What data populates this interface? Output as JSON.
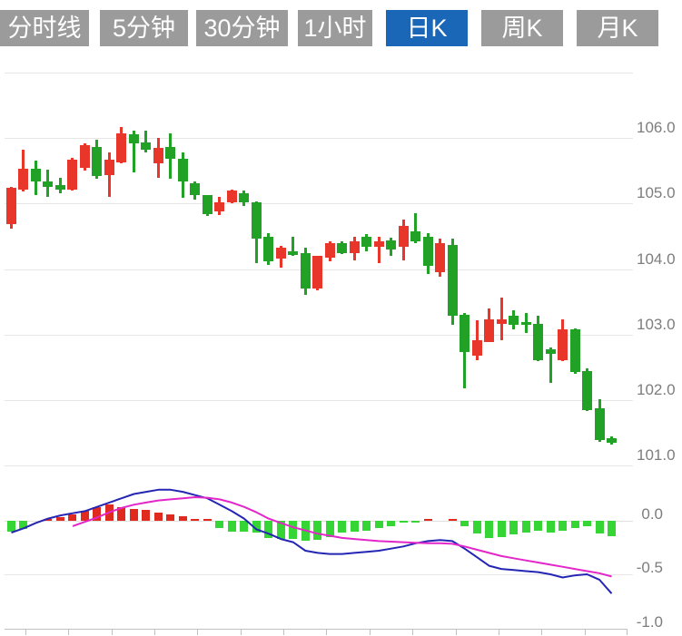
{
  "toolbar": {
    "buttons": [
      {
        "label": "分时线",
        "active": false
      },
      {
        "label": "5分钟",
        "active": false
      },
      {
        "label": "30分钟",
        "active": false
      },
      {
        "label": "1小时",
        "active": false
      },
      {
        "label": "日K",
        "active": true
      },
      {
        "label": "周K",
        "active": false
      },
      {
        "label": "月K",
        "active": false
      }
    ]
  },
  "colors": {
    "button_bg": "#9b9b9b",
    "button_active_bg": "#1a67b8",
    "button_text": "#ffffff",
    "candle_red": "#e8362b",
    "candle_green": "#21a126",
    "hist_red": "#e02a1f",
    "hist_green": "#35d535",
    "dif_line": "#2525b4",
    "dea_line": "#e326c9",
    "grid": "#e8e6e4",
    "axis": "#c2c0be",
    "label": "#7d7d7d"
  },
  "chart_data": {
    "type": "candlestick-with-macd",
    "title": "",
    "selected_interval": "日K",
    "price_axis": {
      "range": [
        100.8,
        107.1
      ],
      "ticks": [
        {
          "value": 107.0,
          "label": ""
        },
        {
          "value": 106.0,
          "label": "106.0"
        },
        {
          "value": 105.0,
          "label": "105.0"
        },
        {
          "value": 104.0,
          "label": "104.0"
        },
        {
          "value": 103.0,
          "label": "103.0"
        },
        {
          "value": 102.0,
          "label": "102.0"
        },
        {
          "value": 101.0,
          "label": "101.0"
        }
      ]
    },
    "macd_axis": {
      "range": [
        -1.05,
        0.45
      ],
      "ticks": [
        {
          "value": 0.0,
          "label": "0.0",
          "axis": false
        },
        {
          "value": -0.5,
          "label": "-0.5",
          "axis": false
        },
        {
          "value": -1.0,
          "label": "-1.0",
          "axis": true
        }
      ]
    },
    "candle_columns": [
      "high",
      "body_top",
      "body_bottom",
      "low",
      "color(r=red,g=green)"
    ],
    "candles": [
      [
        105.26,
        105.24,
        104.69,
        104.62,
        "r"
      ],
      [
        105.82,
        105.53,
        105.21,
        105.19,
        "r"
      ],
      [
        105.65,
        105.53,
        105.34,
        105.13,
        "g"
      ],
      [
        105.52,
        105.34,
        105.25,
        105.1,
        "g"
      ],
      [
        105.4,
        105.28,
        105.22,
        105.16,
        "g"
      ],
      [
        105.7,
        105.67,
        105.22,
        105.2,
        "r"
      ],
      [
        105.92,
        105.89,
        105.54,
        105.51,
        "r"
      ],
      [
        105.97,
        105.86,
        105.42,
        105.38,
        "g"
      ],
      [
        105.78,
        105.67,
        105.43,
        105.1,
        "r"
      ],
      [
        106.17,
        106.07,
        105.63,
        105.61,
        "r"
      ],
      [
        106.12,
        106.06,
        105.92,
        105.47,
        "g"
      ],
      [
        106.12,
        105.94,
        105.82,
        105.78,
        "g"
      ],
      [
        106.0,
        105.85,
        105.61,
        105.4,
        "r"
      ],
      [
        106.07,
        105.86,
        105.68,
        105.38,
        "g"
      ],
      [
        105.78,
        105.68,
        105.34,
        105.09,
        "g"
      ],
      [
        105.34,
        105.31,
        105.13,
        105.06,
        "g"
      ],
      [
        105.13,
        105.13,
        104.84,
        104.81,
        "g"
      ],
      [
        105.1,
        105.02,
        104.88,
        104.82,
        "r"
      ],
      [
        105.22,
        105.2,
        105.02,
        105.0,
        "r"
      ],
      [
        105.2,
        105.16,
        105.02,
        104.96,
        "g"
      ],
      [
        105.03,
        105.02,
        104.46,
        104.09,
        "g"
      ],
      [
        104.55,
        104.5,
        104.12,
        104.06,
        "g"
      ],
      [
        104.36,
        104.32,
        104.16,
        104.02,
        "r"
      ],
      [
        104.5,
        104.27,
        104.22,
        104.2,
        "g"
      ],
      [
        104.32,
        104.25,
        103.71,
        103.6,
        "g"
      ],
      [
        104.2,
        104.2,
        103.71,
        103.67,
        "r"
      ],
      [
        104.43,
        104.39,
        104.18,
        104.12,
        "r"
      ],
      [
        104.43,
        104.39,
        104.25,
        104.23,
        "g"
      ],
      [
        104.5,
        104.43,
        104.25,
        104.13,
        "r"
      ],
      [
        104.54,
        104.5,
        104.34,
        104.27,
        "g"
      ],
      [
        104.5,
        104.43,
        104.34,
        104.09,
        "r"
      ],
      [
        104.48,
        104.44,
        104.3,
        104.2,
        "g"
      ],
      [
        104.75,
        104.66,
        104.34,
        104.13,
        "r"
      ],
      [
        104.85,
        104.58,
        104.43,
        104.4,
        "g"
      ],
      [
        104.55,
        104.5,
        104.05,
        103.92,
        "g"
      ],
      [
        104.46,
        104.4,
        103.95,
        103.88,
        "r"
      ],
      [
        104.46,
        104.37,
        103.29,
        103.15,
        "g"
      ],
      [
        103.33,
        103.3,
        102.73,
        102.18,
        "g"
      ],
      [
        103.22,
        102.91,
        102.68,
        102.61,
        "r"
      ],
      [
        103.4,
        103.23,
        102.89,
        102.89,
        "r"
      ],
      [
        103.56,
        103.23,
        103.16,
        102.91,
        "r"
      ],
      [
        103.37,
        103.29,
        103.15,
        103.08,
        "g"
      ],
      [
        103.33,
        103.19,
        103.15,
        103.02,
        "g"
      ],
      [
        103.29,
        103.16,
        102.61,
        102.59,
        "g"
      ],
      [
        102.8,
        102.77,
        102.7,
        102.26,
        "g"
      ],
      [
        103.23,
        103.08,
        102.61,
        102.59,
        "r"
      ],
      [
        103.1,
        103.08,
        102.43,
        102.4,
        "g"
      ],
      [
        102.49,
        102.45,
        101.85,
        101.83,
        "g"
      ],
      [
        102.01,
        101.87,
        101.39,
        101.36,
        "g"
      ],
      [
        101.45,
        101.42,
        101.35,
        101.32,
        "g"
      ]
    ],
    "macd": {
      "hist": [
        -0.1,
        -0.08,
        0,
        0.02,
        0.03,
        0.06,
        0.09,
        0.13,
        0.15,
        0.13,
        0.11,
        0.1,
        0.08,
        0.06,
        0.04,
        0.02,
        0.01,
        -0.07,
        -0.1,
        -0.1,
        -0.11,
        -0.16,
        -0.17,
        -0.17,
        -0.19,
        -0.18,
        -0.15,
        -0.11,
        -0.1,
        -0.09,
        -0.07,
        -0.05,
        -0.02,
        -0.01,
        0.01,
        0,
        0.01,
        -0.05,
        -0.12,
        -0.16,
        -0.15,
        -0.13,
        -0.11,
        -0.09,
        -0.11,
        -0.09,
        -0.07,
        -0.05,
        -0.12,
        -0.14
      ],
      "dif": [
        -0.11,
        -0.07,
        -0.02,
        0.02,
        0.05,
        0.07,
        0.09,
        0.13,
        0.17,
        0.21,
        0.25,
        0.27,
        0.29,
        0.29,
        0.27,
        0.24,
        0.21,
        0.15,
        0.09,
        0.02,
        -0.08,
        -0.12,
        -0.17,
        -0.2,
        -0.28,
        -0.3,
        -0.31,
        -0.31,
        -0.3,
        -0.29,
        -0.28,
        -0.26,
        -0.24,
        -0.21,
        -0.19,
        -0.18,
        -0.19,
        -0.26,
        -0.34,
        -0.42,
        -0.45,
        -0.46,
        -0.47,
        -0.48,
        -0.5,
        -0.53,
        -0.51,
        -0.5,
        -0.55,
        -0.68
      ],
      "dea": [
        null,
        null,
        null,
        null,
        null,
        -0.05,
        -0.01,
        0.03,
        0.08,
        0.12,
        0.15,
        0.17,
        0.19,
        0.2,
        0.21,
        0.22,
        0.215,
        0.2,
        0.17,
        0.13,
        0.08,
        0.02,
        -0.02,
        -0.06,
        -0.09,
        -0.12,
        -0.14,
        -0.16,
        -0.17,
        -0.18,
        -0.19,
        -0.195,
        -0.2,
        -0.205,
        -0.21,
        -0.21,
        -0.215,
        -0.24,
        -0.27,
        -0.3,
        -0.33,
        -0.35,
        -0.37,
        -0.39,
        -0.41,
        -0.43,
        -0.45,
        -0.47,
        -0.49,
        -0.52
      ]
    }
  }
}
